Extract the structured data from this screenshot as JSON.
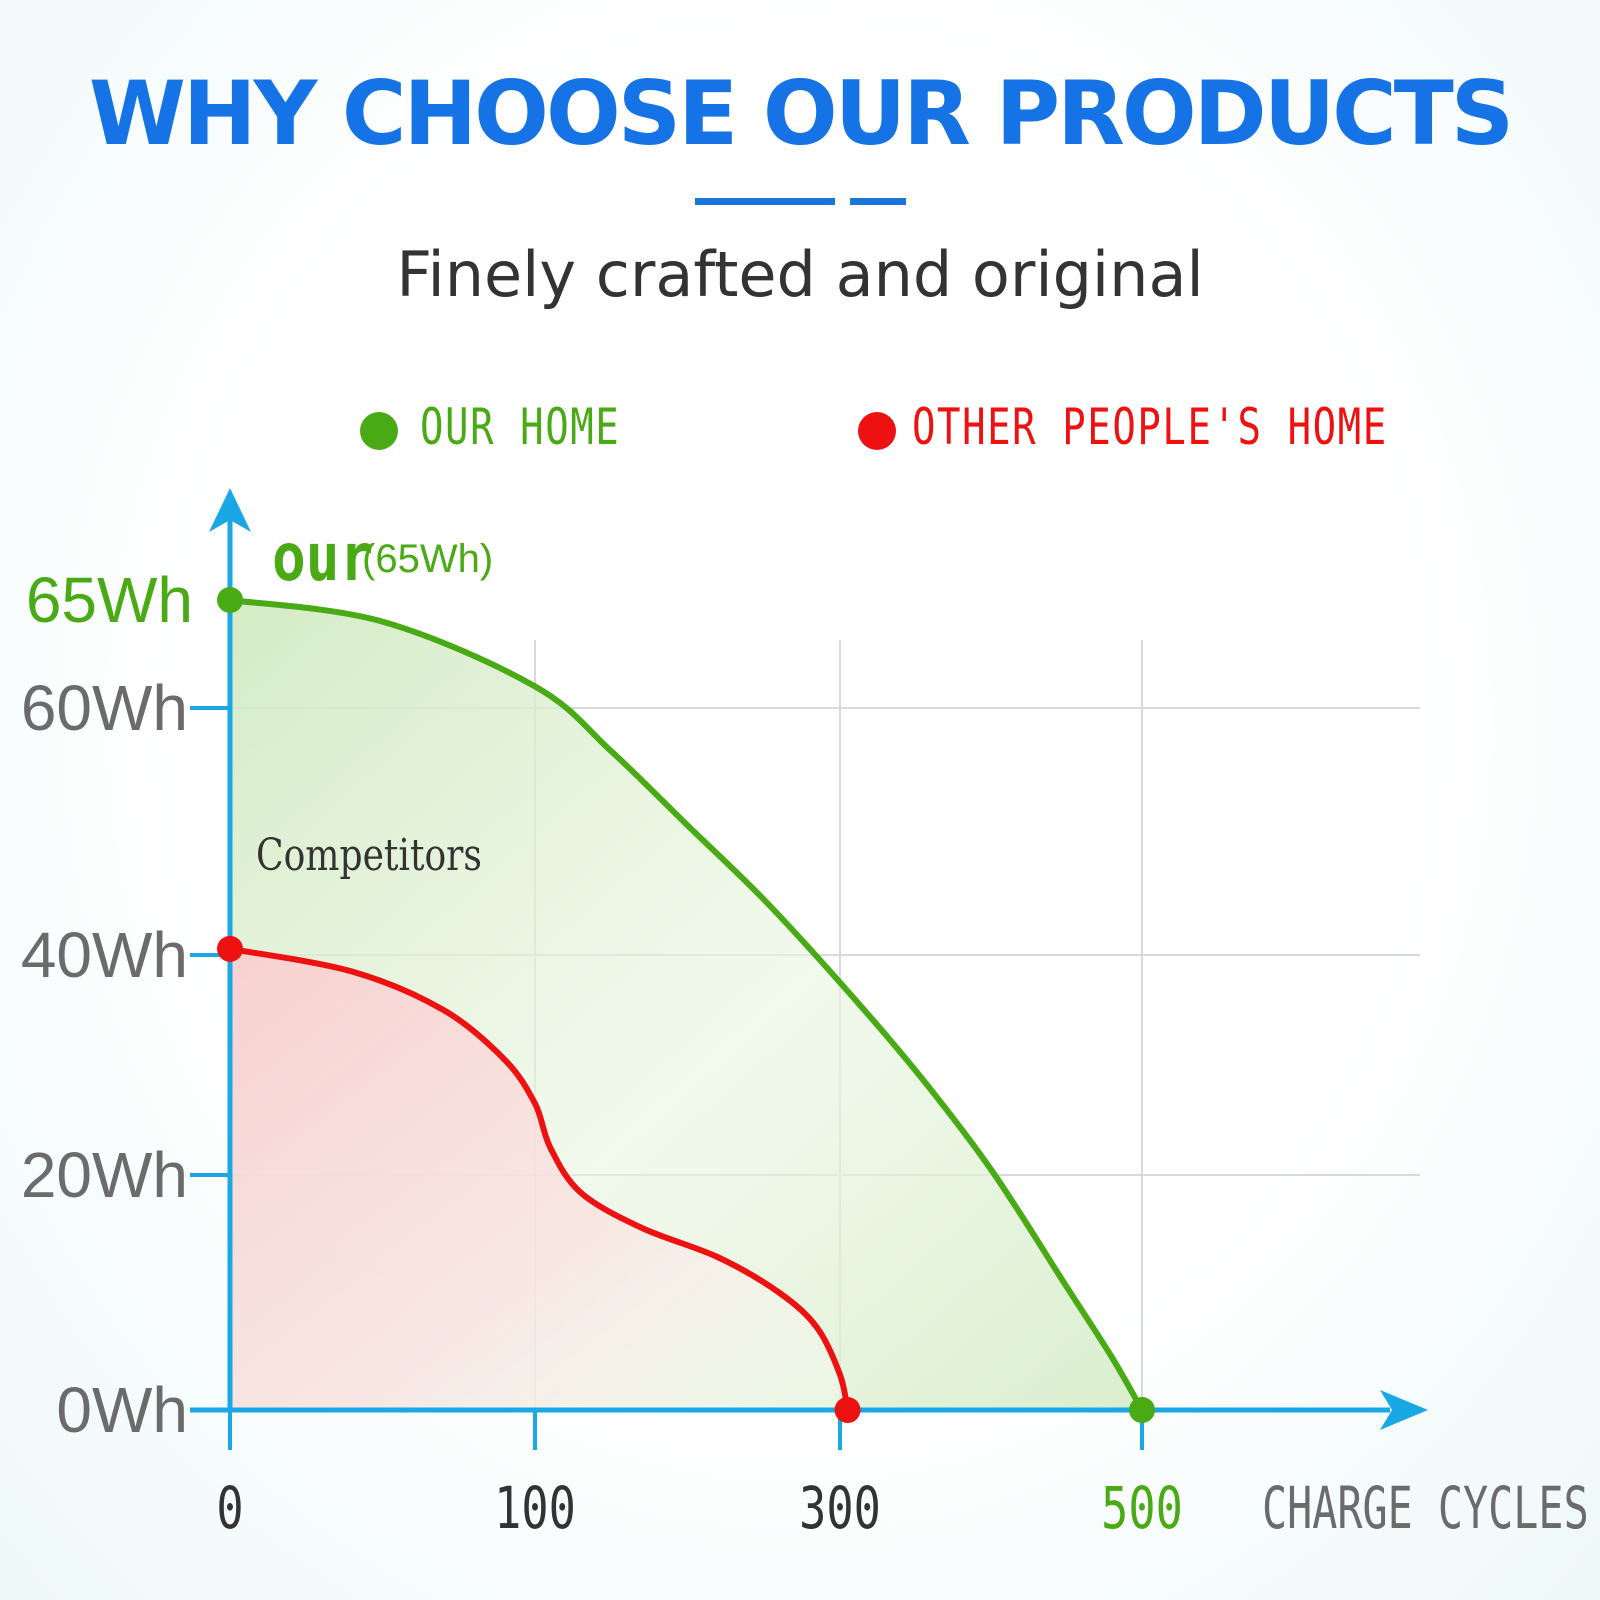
{
  "header": {
    "title": "WHY CHOOSE OUR PRODUCTS",
    "subtitle": "Finely crafted and original"
  },
  "legend": {
    "ours": {
      "label": "OUR HOME",
      "color": "#4aaa16"
    },
    "others": {
      "label": "OTHER PEOPLE'S HOME",
      "color": "#ee1111"
    }
  },
  "colors": {
    "axis": "#1aa7e6",
    "grid": "#d9d9d9",
    "tick_text": "#6b6b6b",
    "dark_text": "#333333"
  },
  "chart_data": {
    "type": "area",
    "xlabel": "CHARGE CYCLES",
    "x_ticks": [
      "0",
      "100",
      "300",
      "500"
    ],
    "y_ticks": [
      "0Wh",
      "20Wh",
      "40Wh",
      "60Wh",
      "65Wh"
    ],
    "annotations": {
      "ours_tag": "our",
      "ours_value": "(65Wh)",
      "competitors": "Competitors"
    },
    "series": [
      {
        "name": "OUR HOME",
        "color": "#4aaa16",
        "x": [
          0,
          50,
          100,
          150,
          200,
          250,
          300,
          350,
          400,
          450,
          480,
          500
        ],
        "y": [
          65,
          64,
          61,
          56.5,
          50.5,
          44.5,
          37.5,
          29.5,
          20.5,
          10.5,
          4.5,
          0
        ]
      },
      {
        "name": "OTHER PEOPLE'S HOME",
        "color": "#ee1111",
        "x": [
          0,
          40,
          70,
          90,
          100,
          110,
          130,
          170,
          220,
          260,
          285,
          300,
          305
        ],
        "y": [
          40.5,
          38.5,
          35,
          30.5,
          26.5,
          22.5,
          18.5,
          15.5,
          13,
          10,
          7,
          3,
          0
        ]
      }
    ],
    "grid": true
  }
}
